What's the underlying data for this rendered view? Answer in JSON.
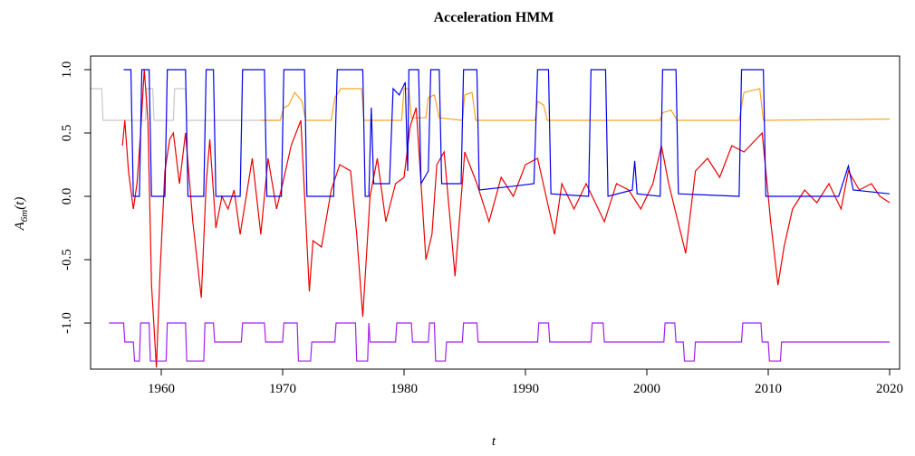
{
  "chart_data": {
    "type": "line",
    "title": "Acceleration HMM",
    "xlabel": "t",
    "ylabel": {
      "base": "A",
      "sub": "6m",
      "tail": "(t)"
    },
    "xlim": [
      1954.18,
      2020.82
    ],
    "ylim": [
      -1.364,
      1.107
    ],
    "xticks": [
      1960,
      1970,
      1980,
      1990,
      2000,
      2010,
      2020
    ],
    "yticks": [
      {
        "value": -1,
        "label": "-1.0"
      },
      -0.5,
      {
        "value": 0,
        "label": "0.0"
      },
      0.5,
      {
        "value": 1,
        "label": "1.0"
      }
    ],
    "series": [
      {
        "color": "#c8c8c8",
        "x": [
          1954.2,
          1955.1,
          1955.2,
          1958.7,
          1958.8,
          1959.3,
          1959.4,
          1961.0,
          1961.1,
          1962.0,
          1962.1,
          1969.5
        ],
        "values": [
          0.85,
          0.85,
          0.6,
          0.6,
          0.85,
          0.85,
          0.6,
          0.6,
          0.85,
          0.85,
          0.6,
          0.6
        ]
      },
      {
        "color": "#f5a623",
        "x": [
          1968.2,
          1969.8,
          1970.1,
          1970.5,
          1971.0,
          1971.6,
          1971.9,
          1974.0,
          1974.3,
          1974.8,
          1976.5,
          1976.7,
          1979.8,
          1980.0,
          1980.4,
          1980.6,
          1981.8,
          1982.0,
          1982.5,
          1982.9,
          1984.8,
          1985.0,
          1985.6,
          1985.9,
          1990.8,
          1991.0,
          1991.5,
          1991.8,
          2001.1,
          2001.3,
          2002.0,
          2002.5,
          2007.6,
          2008.0,
          2009.3,
          2009.6,
          2020.0
        ],
        "values": [
          0.6,
          0.6,
          0.7,
          0.72,
          0.82,
          0.75,
          0.6,
          0.6,
          0.78,
          0.85,
          0.85,
          0.6,
          0.6,
          0.85,
          0.85,
          0.62,
          0.62,
          0.78,
          0.8,
          0.62,
          0.6,
          0.8,
          0.82,
          0.6,
          0.6,
          0.75,
          0.72,
          0.6,
          0.6,
          0.66,
          0.68,
          0.6,
          0.6,
          0.82,
          0.85,
          0.6,
          0.61
        ]
      },
      {
        "color": "#ee0000",
        "x": [
          1956.8,
          1957.0,
          1957.3,
          1957.7,
          1958.0,
          1958.3,
          1958.6,
          1958.9,
          1959.2,
          1959.6,
          1959.9,
          1960.3,
          1960.7,
          1961.0,
          1961.5,
          1962.0,
          1962.6,
          1963.3,
          1963.7,
          1964.0,
          1964.5,
          1965.0,
          1965.5,
          1966.0,
          1966.5,
          1967.0,
          1967.5,
          1968.2,
          1968.8,
          1969.5,
          1970.0,
          1970.7,
          1971.5,
          1972.2,
          1972.5,
          1973.2,
          1974.0,
          1974.7,
          1975.6,
          1976.1,
          1976.6,
          1977.2,
          1977.8,
          1978.5,
          1979.3,
          1980.0,
          1980.5,
          1981.0,
          1981.8,
          1982.3,
          1982.7,
          1983.3,
          1984.2,
          1985.0,
          1986.0,
          1987.0,
          1988.0,
          1989.0,
          1990.0,
          1991.0,
          1992.4,
          1993.0,
          1994.0,
          1995.0,
          1996.5,
          1997.5,
          1998.5,
          1999.5,
          2000.5,
          2001.2,
          2001.8,
          2003.2,
          2004.0,
          2005.0,
          2006.0,
          2007.0,
          2008.0,
          2009.5,
          2010.2,
          2010.8,
          2011.3,
          2012.0,
          2013.0,
          2014.0,
          2015.0,
          2016.0,
          2016.6,
          2017.5,
          2018.5,
          2019.2,
          2020.0
        ],
        "values": [
          0.4,
          0.6,
          0.2,
          -0.1,
          0.1,
          0.5,
          1.0,
          0.6,
          -0.7,
          -1.35,
          -0.6,
          0.2,
          0.45,
          0.5,
          0.1,
          0.5,
          -0.2,
          -0.8,
          0.1,
          0.45,
          -0.25,
          0.0,
          -0.1,
          0.05,
          -0.3,
          0.0,
          0.3,
          -0.3,
          0.3,
          -0.1,
          0.1,
          0.4,
          0.6,
          -0.75,
          -0.35,
          -0.4,
          0.05,
          0.25,
          0.2,
          -0.3,
          -0.95,
          0.0,
          0.3,
          -0.2,
          0.1,
          0.15,
          0.55,
          0.7,
          -0.5,
          -0.3,
          0.25,
          0.35,
          -0.63,
          0.35,
          0.1,
          -0.2,
          0.15,
          0.0,
          0.25,
          0.3,
          -0.3,
          0.1,
          -0.1,
          0.1,
          -0.2,
          0.1,
          0.05,
          -0.1,
          0.1,
          0.4,
          0.1,
          -0.45,
          0.2,
          0.3,
          0.15,
          0.4,
          0.35,
          0.5,
          -0.2,
          -0.7,
          -0.4,
          -0.1,
          0.05,
          -0.05,
          0.1,
          -0.1,
          0.2,
          0.05,
          0.1,
          0.0,
          -0.05
        ]
      },
      {
        "color": "#0000ee",
        "x": [
          1956.9,
          1957.5,
          1957.7,
          1958.2,
          1958.4,
          1959.0,
          1959.2,
          1960.3,
          1960.5,
          1962.0,
          1962.2,
          1963.5,
          1963.7,
          1964.3,
          1964.5,
          1966.5,
          1966.7,
          1968.5,
          1968.7,
          1969.9,
          1970.1,
          1971.8,
          1972.0,
          1974.2,
          1974.5,
          1976.6,
          1976.8,
          1977.1,
          1977.3,
          1977.5,
          1978.8,
          1979.1,
          1979.6,
          1980.1,
          1980.3,
          1980.4,
          1981.2,
          1981.4,
          1982.0,
          1982.2,
          1982.9,
          1983.1,
          1984.7,
          1984.9,
          1986.0,
          1986.2,
          1989.0,
          1990.7,
          1991.0,
          1991.9,
          1992.1,
          1995.2,
          1995.4,
          1996.6,
          1996.8,
          1998.8,
          1999.0,
          1999.2,
          2001.1,
          2001.3,
          2002.4,
          2002.6,
          2007.6,
          2007.8,
          2009.6,
          2009.8,
          2015.8,
          2016.6,
          2017.0,
          2020.0
        ],
        "values": [
          1,
          1,
          0,
          0,
          1,
          1,
          0,
          0,
          1,
          1,
          0,
          0,
          1,
          1,
          0,
          0,
          1,
          1,
          0,
          0,
          1,
          1,
          0,
          0,
          1,
          1,
          0,
          0,
          0.7,
          0.1,
          0.1,
          0.85,
          0.8,
          0.9,
          0.2,
          1,
          1,
          0.1,
          0.2,
          1,
          1,
          0.1,
          0.1,
          1,
          1,
          0.05,
          0.08,
          0.1,
          1,
          1,
          0.02,
          0,
          1,
          1,
          0,
          0.05,
          0.28,
          0.02,
          0,
          1,
          1,
          0.02,
          0,
          1,
          1,
          0,
          0,
          0.24,
          0.05,
          0.02
        ]
      },
      {
        "color": "#a020f0",
        "x": [
          1955.7,
          1956.9,
          1957.0,
          1957.7,
          1957.8,
          1958.2,
          1958.3,
          1959.0,
          1959.1,
          1960.4,
          1960.5,
          1962.0,
          1962.1,
          1963.5,
          1963.6,
          1964.3,
          1964.4,
          1966.6,
          1966.7,
          1968.5,
          1968.6,
          1970.0,
          1970.1,
          1971.2,
          1971.3,
          1972.3,
          1972.4,
          1974.3,
          1974.4,
          1976.0,
          1976.1,
          1977.0,
          1977.1,
          1977.2,
          1979.3,
          1979.4,
          1980.6,
          1980.7,
          1982.0,
          1982.1,
          1982.5,
          1982.6,
          1983.4,
          1983.5,
          1984.8,
          1984.9,
          1986.0,
          1986.1,
          1991.0,
          1991.1,
          1991.9,
          1992.0,
          1995.4,
          1995.5,
          1996.4,
          1996.5,
          2001.4,
          2001.5,
          2002.3,
          2002.4,
          2003.0,
          2003.1,
          2003.9,
          2004.0,
          2007.8,
          2007.9,
          2009.4,
          2009.5,
          2010.0,
          2010.1,
          2011.0,
          2011.1,
          2020.0
        ],
        "values": [
          -1,
          -1,
          -1.15,
          -1.15,
          -1.3,
          -1.3,
          -1,
          -1,
          -1.3,
          -1.3,
          -1,
          -1,
          -1.3,
          -1.3,
          -1,
          -1,
          -1.15,
          -1.15,
          -1,
          -1,
          -1.15,
          -1.15,
          -1,
          -1,
          -1.3,
          -1.3,
          -1.15,
          -1.15,
          -1,
          -1,
          -1.3,
          -1.3,
          -1,
          -1.15,
          -1.15,
          -1,
          -1,
          -1.15,
          -1.15,
          -1,
          -1,
          -1.3,
          -1.3,
          -1.15,
          -1.15,
          -1,
          -1,
          -1.15,
          -1.15,
          -1,
          -1,
          -1.15,
          -1.15,
          -1,
          -1,
          -1.15,
          -1.15,
          -1,
          -1,
          -1.15,
          -1.15,
          -1.3,
          -1.3,
          -1.15,
          -1.15,
          -1,
          -1,
          -1.15,
          -1.15,
          -1.3,
          -1.3,
          -1.15,
          -1.15
        ]
      }
    ]
  }
}
